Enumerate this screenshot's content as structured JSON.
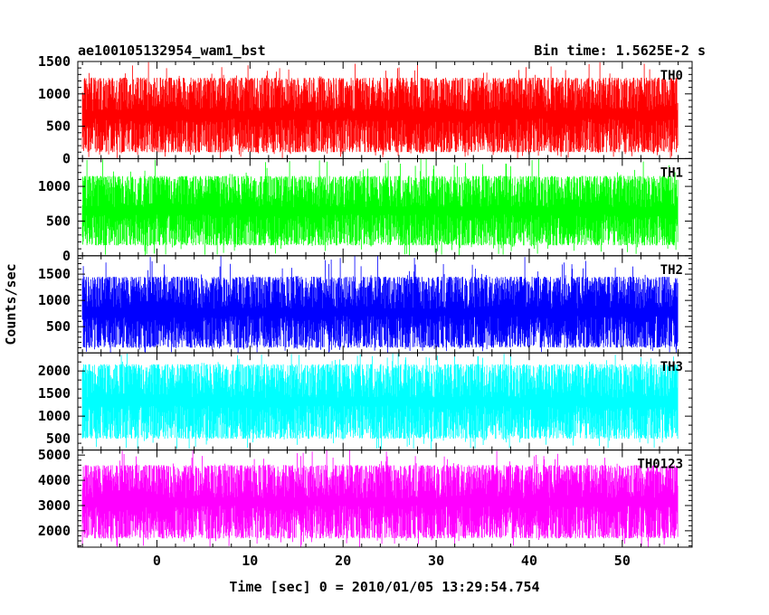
{
  "header": {
    "title": "ae100105132954_wam1_bst",
    "bin_time": "Bin time: 1.5625E-2 s"
  },
  "chart_data": {
    "type": "line",
    "title": "ae100105132954_wam1_bst",
    "bin_time": "Bin time: 1.5625E-2 s",
    "xlabel": "Time [sec] 0 = 2010/01/05 13:29:54.754",
    "ylabel": "Counts/sec",
    "xlim": [
      -8.5,
      57.5
    ],
    "x_data_range": [
      -8,
      56
    ],
    "x_ticks": [
      0,
      10,
      20,
      30,
      40,
      50
    ],
    "grid": false,
    "panels": [
      {
        "name": "TH0",
        "color": "#ff0000",
        "ylim": [
          0,
          1500
        ],
        "y_ticks": [
          0,
          500,
          1000,
          1500
        ],
        "typical_min": 100,
        "typical_max": 1250,
        "spike_max": 1500
      },
      {
        "name": "TH1",
        "color": "#00ff00",
        "ylim": [
          0,
          1400
        ],
        "y_ticks": [
          0,
          500,
          1000
        ],
        "typical_min": 150,
        "typical_max": 1150,
        "spike_max": 1400
      },
      {
        "name": "TH2",
        "color": "#0000ff",
        "ylim": [
          0,
          1850
        ],
        "y_ticks": [
          500,
          1000,
          1500
        ],
        "typical_min": 100,
        "typical_max": 1450,
        "spike_max": 1850
      },
      {
        "name": "TH3",
        "color": "#00ffff",
        "ylim": [
          250,
          2400
        ],
        "y_ticks": [
          500,
          1000,
          1500,
          2000
        ],
        "typical_min": 500,
        "typical_max": 2150,
        "spike_max": 2400
      },
      {
        "name": "TH0123",
        "color": "#ff00ff",
        "ylim": [
          1350,
          5200
        ],
        "y_ticks": [
          2000,
          3000,
          4000,
          5000
        ],
        "typical_min": 1700,
        "typical_max": 4600,
        "spike_max": 5200
      }
    ]
  }
}
